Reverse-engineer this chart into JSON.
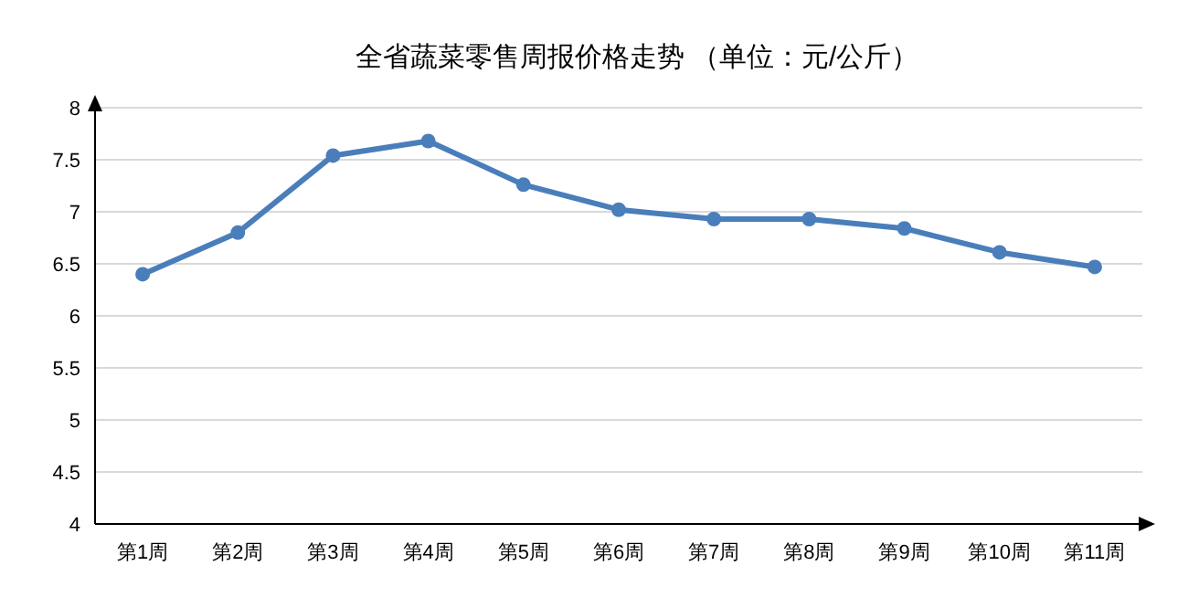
{
  "chart_data": {
    "type": "line",
    "title": "全省蔬菜零售周报价格走势    （单位：元/公斤）",
    "categories": [
      "第1周",
      "第2周",
      "第3周",
      "第4周",
      "第5周",
      "第6周",
      "第7周",
      "第8周",
      "第9周",
      "第10周",
      "第11周"
    ],
    "series": [
      {
        "color": "#4a7ebb",
        "values": [
          6.4,
          6.8,
          7.54,
          7.68,
          7.26,
          7.02,
          6.93,
          6.93,
          6.84,
          6.61,
          6.47
        ]
      }
    ],
    "ylim": [
      4,
      8
    ],
    "yticks": [
      4,
      4.5,
      5,
      5.5,
      6,
      6.5,
      7,
      7.5,
      8
    ],
    "grid": "y",
    "marker": "circle",
    "line_style": "solid"
  }
}
